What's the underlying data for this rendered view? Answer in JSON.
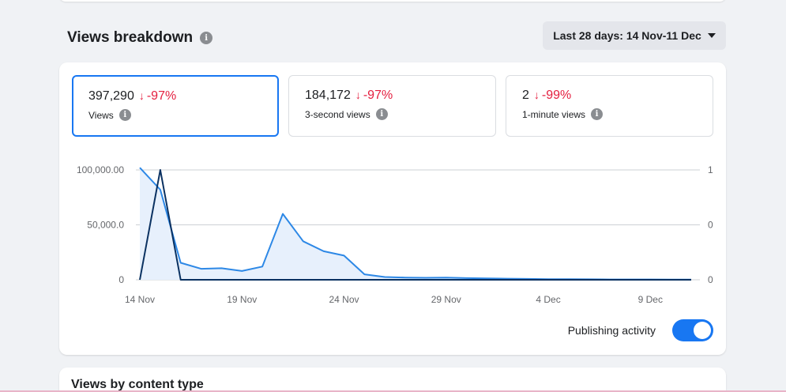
{
  "header": {
    "title": "Views breakdown",
    "info_icon": "info-icon",
    "date_range_label": "Last 28 days: 14 Nov-11 Dec"
  },
  "metrics": [
    {
      "value": "397,290",
      "delta": "-97%",
      "delta_arrow": "↓",
      "label": "Views",
      "selected": true
    },
    {
      "value": "184,172",
      "delta": "-97%",
      "delta_arrow": "↓",
      "label": "3-second views",
      "selected": false
    },
    {
      "value": "2",
      "delta": "-99%",
      "delta_arrow": "↓",
      "label": "1-minute views",
      "selected": false
    }
  ],
  "toggle": {
    "label": "Publishing activity",
    "on": true
  },
  "next_section": {
    "title": "Views by content type"
  },
  "colors": {
    "views_series": "#2d88e6",
    "views_fill": "#e7f0fc",
    "secondary_series": "#0a3161",
    "negative_delta": "#e41e3f",
    "accent": "#1877f2"
  },
  "chart_data": {
    "type": "line",
    "x_ticks": [
      "14 Nov",
      "19 Nov",
      "24 Nov",
      "29 Nov",
      "4 Dec",
      "9 Dec"
    ],
    "y_ticks_left": [
      "100,000.00",
      "50,000.0",
      "0"
    ],
    "y_ticks_right": [
      "1",
      "0",
      "0"
    ],
    "ylim_left": [
      0,
      100000
    ],
    "ylim_right": [
      0,
      1
    ],
    "x": [
      "14 Nov",
      "15 Nov",
      "16 Nov",
      "17 Nov",
      "18 Nov",
      "19 Nov",
      "20 Nov",
      "21 Nov",
      "22 Nov",
      "23 Nov",
      "24 Nov",
      "25 Nov",
      "26 Nov",
      "27 Nov",
      "28 Nov",
      "29 Nov",
      "30 Nov",
      "1 Dec",
      "2 Dec",
      "3 Dec",
      "4 Dec",
      "5 Dec",
      "6 Dec",
      "7 Dec",
      "8 Dec",
      "9 Dec",
      "10 Dec",
      "11 Dec"
    ],
    "series": [
      {
        "axis": "left",
        "area": true,
        "values": [
          102000,
          82000,
          15500,
          10000,
          10500,
          8000,
          12000,
          60000,
          35000,
          26000,
          22000,
          5000,
          2500,
          2000,
          1800,
          2000,
          1500,
          1200,
          1000,
          800,
          600,
          500,
          400,
          300,
          300,
          300,
          200,
          200
        ]
      },
      {
        "axis": "right",
        "area": false,
        "values": [
          0,
          1,
          0,
          0,
          0,
          0,
          0,
          0,
          0,
          0,
          0,
          0,
          0,
          0,
          0,
          0,
          0,
          0,
          0,
          0,
          0,
          0,
          0,
          0,
          0,
          0,
          0,
          0
        ]
      }
    ],
    "grid": true
  }
}
